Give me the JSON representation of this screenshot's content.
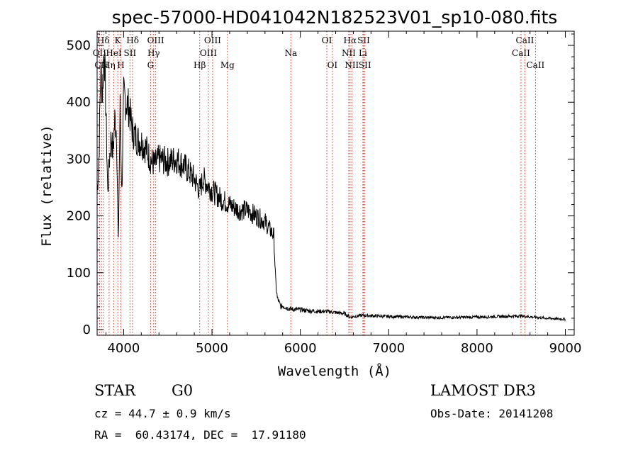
{
  "chart_data": {
    "type": "line",
    "title": "spec-57000-HD041042N182523V01_sp10-080.fits",
    "xlabel": "Wavelength (Å)",
    "ylabel": "Flux (relative)",
    "xlim": [
      3700,
      9100
    ],
    "ylim": [
      -10,
      525
    ],
    "xticks": [
      4000,
      5000,
      6000,
      7000,
      8000,
      9000
    ],
    "yticks": [
      0,
      100,
      200,
      300,
      400,
      500
    ],
    "series": [
      {
        "name": "spectrum",
        "x": [
          3700,
          3720,
          3740,
          3760,
          3780,
          3800,
          3820,
          3840,
          3860,
          3880,
          3900,
          3920,
          3940,
          3960,
          3980,
          4000,
          4030,
          4060,
          4100,
          4150,
          4200,
          4250,
          4300,
          4350,
          4400,
          4500,
          4600,
          4700,
          4800,
          4861,
          4900,
          5000,
          5100,
          5200,
          5300,
          5400,
          5500,
          5600,
          5700,
          5720,
          5740,
          5760,
          5780,
          5800,
          5850,
          5900,
          6000,
          6100,
          6200,
          6300,
          6400,
          6500,
          6563,
          6700,
          7000,
          7500,
          8000,
          8500,
          8700,
          9000
        ],
        "y": [
          240,
          300,
          455,
          420,
          500,
          380,
          240,
          300,
          340,
          310,
          370,
          350,
          150,
          390,
          240,
          410,
          400,
          390,
          350,
          335,
          330,
          320,
          300,
          290,
          300,
          295,
          300,
          285,
          265,
          245,
          265,
          245,
          230,
          220,
          210,
          210,
          200,
          190,
          165,
          85,
          55,
          48,
          40,
          42,
          38,
          36,
          35,
          33,
          32,
          32,
          30,
          28,
          22,
          25,
          23,
          21,
          22,
          24,
          21,
          18
        ]
      }
    ],
    "line_markers": [
      {
        "label": "Hδ",
        "wavelength": 3770,
        "row": 1
      },
      {
        "label": "OII",
        "wavelength": 3727,
        "row": 2
      },
      {
        "label": "CN",
        "wavelength": 3750,
        "row": 3
      },
      {
        "label": "K",
        "wavelength": 3934,
        "row": 1
      },
      {
        "label": "HeI",
        "wavelength": 3889,
        "row": 2
      },
      {
        "label": "Hη",
        "wavelength": 3835,
        "row": 3
      },
      {
        "label": "SII",
        "wavelength": 4072,
        "row": 2
      },
      {
        "label": "H",
        "wavelength": 3969,
        "row": 3
      },
      {
        "label": "Hδ",
        "wavelength": 4102,
        "row": 1
      },
      {
        "label": "OIII",
        "wavelength": 4363,
        "row": 1
      },
      {
        "label": "Hγ",
        "wavelength": 4340,
        "row": 2
      },
      {
        "label": "G",
        "wavelength": 4305,
        "row": 3
      },
      {
        "label": "Hβ",
        "wavelength": 4861,
        "row": 3
      },
      {
        "label": "OIII",
        "wavelength": 5007,
        "row": 1
      },
      {
        "label": "OIII",
        "wavelength": 4959,
        "row": 2
      },
      {
        "label": "Mg",
        "wavelength": 5175,
        "row": 3
      },
      {
        "label": "Na",
        "wavelength": 5893,
        "row": 2
      },
      {
        "label": "OI",
        "wavelength": 6300,
        "row": 1
      },
      {
        "label": "OI",
        "wavelength": 6363,
        "row": 3
      },
      {
        "label": "Hα",
        "wavelength": 6563,
        "row": 1
      },
      {
        "label": "NII",
        "wavelength": 6548,
        "row": 2
      },
      {
        "label": "NII",
        "wavelength": 6583,
        "row": 3
      },
      {
        "label": "SII",
        "wavelength": 6717,
        "row": 1
      },
      {
        "label": "Li",
        "wavelength": 6708,
        "row": 2
      },
      {
        "label": "SII",
        "wavelength": 6731,
        "row": 3
      },
      {
        "label": "CaII",
        "wavelength": 8542,
        "row": 1
      },
      {
        "label": "CaII",
        "wavelength": 8498,
        "row": 2
      },
      {
        "label": "CaII",
        "wavelength": 8662,
        "row": 3
      }
    ]
  },
  "info": {
    "class": "STAR",
    "subclass": "G0",
    "survey": "LAMOST DR3",
    "cz": "cz = 44.7 ± 0.9 km/s",
    "obs_date": "Obs-Date: 20141208",
    "coords": "RA =  60.43174, DEC =  17.91180"
  },
  "colors": {
    "spectrum": "#000000",
    "marker_line": "#c0392b",
    "axis": "#000000"
  }
}
